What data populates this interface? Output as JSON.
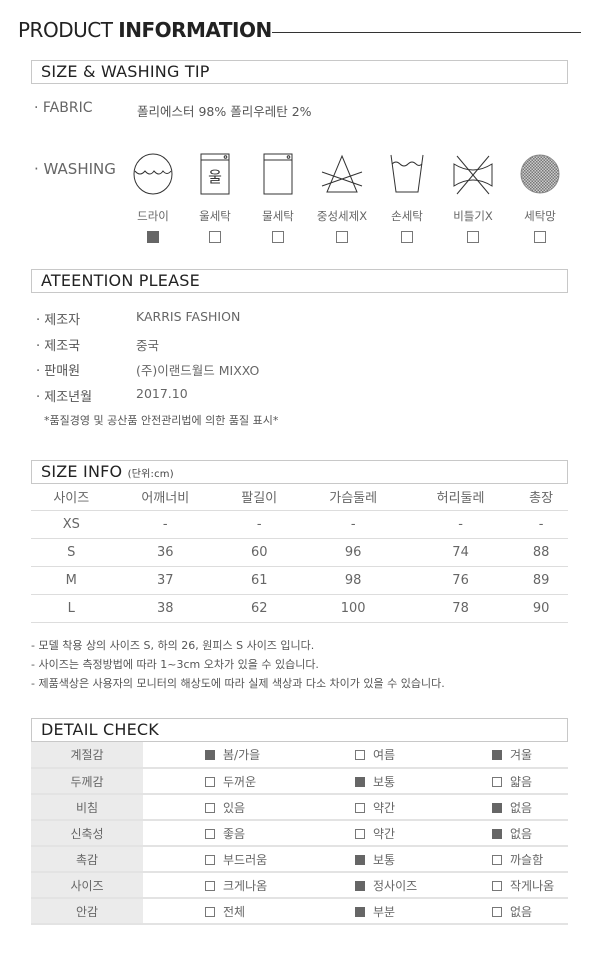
{
  "title": {
    "light": "PRODUCT ",
    "bold": "INFORMATION"
  },
  "sections": {
    "washing": "SIZE & WASHING TIP",
    "attention": "ATEENTION PLEASE",
    "size": "SIZE INFO",
    "size_unit": "(단위:cm)",
    "detail": "DETAIL CHECK"
  },
  "fabric": {
    "label": "· FABRIC",
    "value": "폴리에스터 98% 폴리우레탄 2%"
  },
  "washing": {
    "label": "· WASHING",
    "items": [
      {
        "icon": "dry-clean-icon",
        "label": "드라이",
        "checked": true
      },
      {
        "icon": "wool-wash-icon",
        "label": "울세탁",
        "checked": false
      },
      {
        "icon": "water-wash-icon",
        "label": "물세탁",
        "checked": false
      },
      {
        "icon": "no-bleach-icon",
        "label": "중성세제X",
        "checked": false
      },
      {
        "icon": "hand-wash-icon",
        "label": "손세탁",
        "checked": false
      },
      {
        "icon": "no-wring-icon",
        "label": "비틀기X",
        "checked": false
      },
      {
        "icon": "laundry-net-icon",
        "label": "세탁망",
        "checked": false
      }
    ]
  },
  "attention": {
    "rows": [
      {
        "key": "· 제조자",
        "value": "KARRIS FASHION"
      },
      {
        "key": "· 제조국",
        "value": "중국"
      },
      {
        "key": "· 판매원",
        "value": "(주)이랜드월드 MIXXO"
      },
      {
        "key": "· 제조년월",
        "value": "2017.10"
      }
    ],
    "note": "*품질경영 및 공산품 안전관리법에 의한 품질 표시*"
  },
  "size_table": {
    "headers": [
      "사이즈",
      "어깨너비",
      "팔길이",
      "가슴둘레",
      "허리둘레",
      "총장"
    ],
    "rows": [
      [
        "XS",
        "-",
        "-",
        "-",
        "-",
        "-"
      ],
      [
        "S",
        "36",
        "60",
        "96",
        "74",
        "88"
      ],
      [
        "M",
        "37",
        "61",
        "98",
        "76",
        "89"
      ],
      [
        "L",
        "38",
        "62",
        "100",
        "78",
        "90"
      ]
    ]
  },
  "size_notes": [
    "- 모델 착용 상의 사이즈 S, 하의 26, 원피스 S 사이즈 입니다.",
    "- 사이즈는 측정방법에 따라 1~3cm 오차가 있을 수 있습니다.",
    "- 제품색상은 사용자의 모니터의 해상도에 따라 실제 색상과 다소 차이가 있을 수 있습니다."
  ],
  "detail_check": [
    {
      "label": "계절감",
      "options": [
        {
          "text": "봄/가을",
          "checked": true
        },
        {
          "text": "여름",
          "checked": false
        },
        {
          "text": "겨울",
          "checked": true
        }
      ]
    },
    {
      "label": "두께감",
      "options": [
        {
          "text": "두꺼운",
          "checked": false
        },
        {
          "text": "보통",
          "checked": true
        },
        {
          "text": "얇음",
          "checked": false
        }
      ]
    },
    {
      "label": "비침",
      "options": [
        {
          "text": "있음",
          "checked": false
        },
        {
          "text": "약간",
          "checked": false
        },
        {
          "text": "없음",
          "checked": true
        }
      ]
    },
    {
      "label": "신축성",
      "options": [
        {
          "text": "좋음",
          "checked": false
        },
        {
          "text": "약간",
          "checked": false
        },
        {
          "text": "없음",
          "checked": true
        }
      ]
    },
    {
      "label": "촉감",
      "options": [
        {
          "text": "부드러움",
          "checked": false
        },
        {
          "text": "보통",
          "checked": true
        },
        {
          "text": "까슬함",
          "checked": false
        }
      ]
    },
    {
      "label": "사이즈",
      "options": [
        {
          "text": "크게나옴",
          "checked": false
        },
        {
          "text": "정사이즈",
          "checked": true
        },
        {
          "text": "작게나옴",
          "checked": false
        }
      ]
    },
    {
      "label": "안감",
      "options": [
        {
          "text": "전체",
          "checked": false
        },
        {
          "text": "부분",
          "checked": true
        },
        {
          "text": "없음",
          "checked": false
        }
      ]
    }
  ],
  "colors": {
    "checked": "#666666",
    "label_bg": "#ebebeb",
    "border": "#c8c8c8"
  }
}
